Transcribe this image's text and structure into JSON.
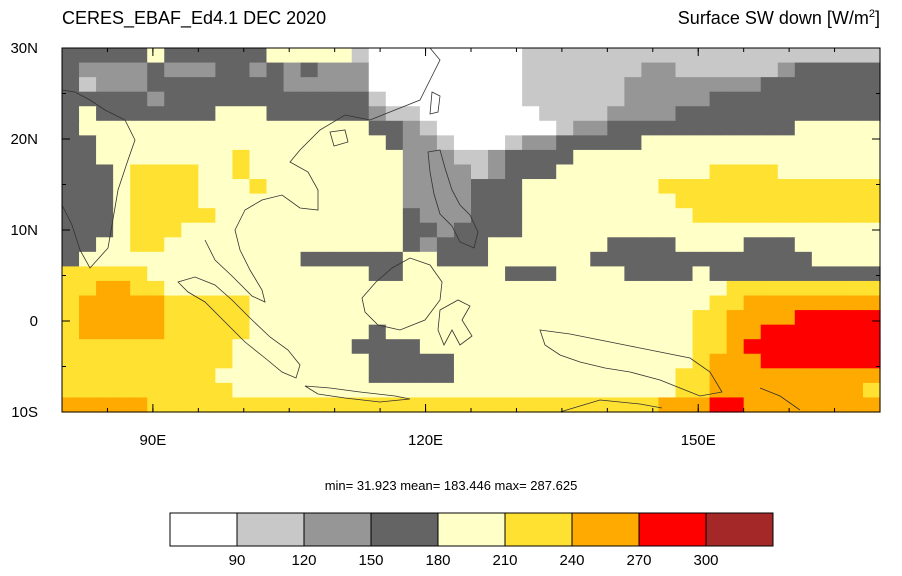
{
  "title_left": "CERES_EBAF_Ed4.1 DEC 2020",
  "title_right": "Surface SW down [W/m",
  "title_right_sup": "2",
  "title_right_close": "]",
  "stats_text": "min=  31.923  mean= 183.446  max= 287.625",
  "x_ticks": [
    {
      "lon": 90,
      "label": "90E"
    },
    {
      "lon": 120,
      "label": "120E"
    },
    {
      "lon": 150,
      "label": "150E"
    }
  ],
  "y_ticks": [
    {
      "lat": 30,
      "label": "30N"
    },
    {
      "lat": 20,
      "label": "20N"
    },
    {
      "lat": 10,
      "label": "10N"
    },
    {
      "lat": 0,
      "label": "0"
    },
    {
      "lat": -10,
      "label": "10S"
    }
  ],
  "extent": {
    "lon_min": 80,
    "lon_max": 170,
    "lat_min": -10,
    "lat_max": 30
  },
  "colorbar": {
    "colors": [
      "#ffffff",
      "#c8c8c8",
      "#969696",
      "#646464",
      "#ffffc8",
      "#ffe132",
      "#ffaa00",
      "#ff0000",
      "#a52828"
    ],
    "labels": [
      "90",
      "120",
      "150",
      "180",
      "210",
      "240",
      "270",
      "300"
    ]
  },
  "field_legend": {
    "0": "<90",
    "1": "90-120",
    "2": "120-150",
    "3": "150-180",
    "4": "180-210",
    "5": "210-240",
    "6": "240-270",
    "7": "270-300",
    "8": ">300"
  },
  "field_rows": [
    "333334333333444441000000000111111111111111111111",
    "322223222332323222000000000111111122111111233333",
    "312223333333322222000000000111111222222223333333",
    "333332333333333333100000000111111222223333333333",
    "343333333444333333211000000011112222333333333333",
    "344444444444444444332100000001223333333333344444",
    "334444444444444444432210001223333344444444444444",
    "334444444454444444442221123333444444444444444444",
    "333455554454444444442222123334444444445555444444",
    "333455554445444444442222333444444445555555555555",
    "333455554444444444442222333444444444555555555555",
    "333455555444444444443222333444444444455555555555",
    "333455544444444444443323333444444444444444444444",
    "334455444444444444443233344444443333444433344444",
    "344444444444443333334433344444433333333333334444",
    "555554444444444444334444443334444333343333333333",
    "556655444444444444444444444444444444444555555555",
    "566666555554444444444444444444444444445566666666",
    "566666555554444444444444444444444444455666677777",
    "566666555554444444344444444444444444455667777777",
    "555555555544444443333444444444444444455677777777",
    "555555555544444444333334444444444444456667777777",
    "555555555444444444333334444444444444556666666666",
    "555555555544444444444444444444444444556666666665",
    "666665555555555555555555555555555556667766666666"
  ]
}
